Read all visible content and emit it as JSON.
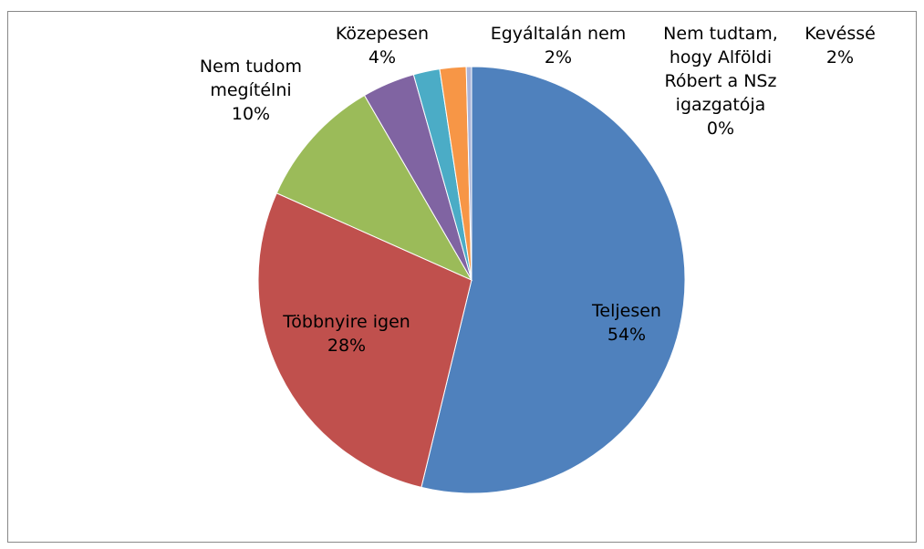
{
  "chart_data": {
    "type": "pie",
    "categories": [
      "Teljesen",
      "Többnyire igen",
      "Nem tudom megítélni",
      "Közepesen",
      "Kevéssé",
      "Egyáltalán nem",
      "Nem tudtam, hogy Alföldi Róbert a NSz igazgatója"
    ],
    "values": [
      54,
      28,
      10,
      4,
      2,
      2,
      0.4
    ],
    "value_labels": [
      "54%",
      "28%",
      "10%",
      "4%",
      "2%",
      "2%",
      "0%"
    ],
    "colors": [
      "#4f81bd",
      "#c0504d",
      "#9bbb59",
      "#8064a2",
      "#4bacc6",
      "#f79646",
      "#aab4d8"
    ]
  }
}
